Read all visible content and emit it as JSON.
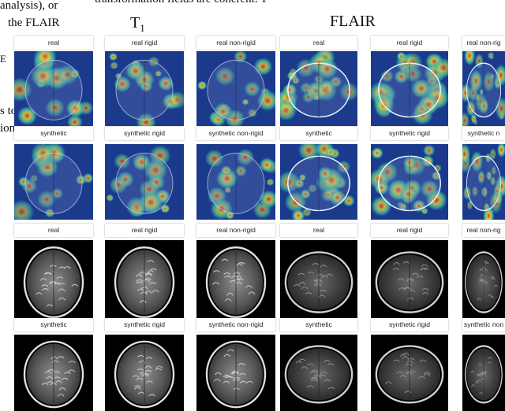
{
  "paper_text": {
    "top_line": "transformation fields are coherent. T",
    "left_lines": [
      "analysis), or",
      "the FLAIR",
      "E",
      "s to",
      "ion"
    ]
  },
  "headings": {
    "t1": "T",
    "t1_sub": "1",
    "flair": "FLAIR"
  },
  "row1_labels": [
    "real",
    "real rigid",
    "real non-rigid",
    "real",
    "real rigid",
    "real non-rig"
  ],
  "row2_labels": [
    "synthetic",
    "synthetic rigid",
    "synthetic non-rigid",
    "synthetic",
    "synthetic rigid",
    "synthetic n"
  ],
  "row3_labels": [
    "real",
    "real rigid",
    "real non-rigid",
    "real",
    "real rigid",
    "real non-rig"
  ],
  "row4_labels": [
    "synthetic",
    "synthetic rigid",
    "synthetic non-rigid",
    "synthetic",
    "synthetic rigid",
    "synthetic non"
  ],
  "colors": {
    "heatmap_bg": "#1b3a8c",
    "heatmap_hot": "#d93a2a",
    "heatmap_warm": "#e8d23a",
    "heatmap_mid": "#3fb8a8",
    "mri_bg": "#000000"
  }
}
